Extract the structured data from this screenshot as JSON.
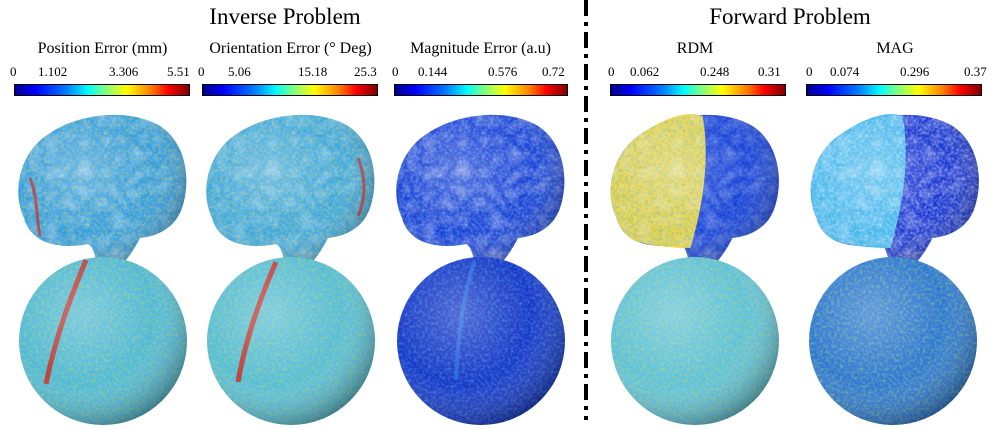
{
  "headings": {
    "inverse": "Inverse Problem",
    "forward": "Forward Problem"
  },
  "colormap": "jet",
  "panels": [
    {
      "id": "position",
      "title": "Position Error (mm)",
      "ticks": [
        "0",
        "1.102",
        "3.306",
        "5.51"
      ],
      "brain_pattern": "mixed-high",
      "sphere_pattern": "mid-with-red-streak"
    },
    {
      "id": "orientation",
      "title": "Orientation Error (° Deg)",
      "ticks": [
        "0",
        "5.06",
        "15.18",
        "25.3"
      ],
      "brain_pattern": "mixed-high",
      "sphere_pattern": "mid-with-red-streak"
    },
    {
      "id": "magnitude",
      "title": "Magnitude Error (a.u)",
      "ticks": [
        "0",
        "0.144",
        "0.576",
        "0.72"
      ],
      "brain_pattern": "mostly-low",
      "sphere_pattern": "low-speckled"
    },
    {
      "id": "rdm",
      "title": "RDM",
      "ticks": [
        "0",
        "0.062",
        "0.248",
        "0.31"
      ],
      "brain_pattern": "front-high-back-low",
      "sphere_pattern": "mid-speckled"
    },
    {
      "id": "mag",
      "title": "MAG",
      "ticks": [
        "0",
        "0.074",
        "0.296",
        "0.37"
      ],
      "brain_pattern": "front-mid-back-low",
      "sphere_pattern": "low-mid-speckled"
    }
  ]
}
